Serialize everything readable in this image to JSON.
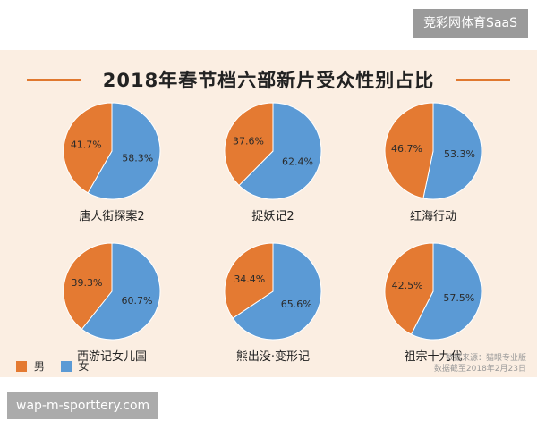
{
  "brand_badge": "竞彩网体育SaaS",
  "url_badge": "wap-m-sporttery.com",
  "colors": {
    "male": "#e47a32",
    "female": "#5b9ad5",
    "panel": "#fbeee2",
    "accent": "#e0782f"
  },
  "chart_data": {
    "type": "pie",
    "title": "2018年春节档六部新片受众性别占比",
    "legend_position": "bottom-left",
    "legend": [
      {
        "label": "男",
        "color": "#e47a32"
      },
      {
        "label": "女",
        "color": "#5b9ad5"
      }
    ],
    "charts": [
      {
        "name": "唐人街探案2",
        "male": 41.7,
        "female": 58.3,
        "male_label": "41.7%",
        "female_label": "58.3%"
      },
      {
        "name": "捉妖记2",
        "male": 37.6,
        "female": 62.4,
        "male_label": "37.6%",
        "female_label": "62.4%"
      },
      {
        "name": "红海行动",
        "male": 46.7,
        "female": 53.3,
        "male_label": "46.7%",
        "female_label": "53.3%"
      },
      {
        "name": "西游记女儿国",
        "male": 39.3,
        "female": 60.7,
        "male_label": "39.3%",
        "female_label": "60.7%"
      },
      {
        "name": "熊出没·变形记",
        "male": 34.4,
        "female": 65.6,
        "male_label": "34.4%",
        "female_label": "65.6%"
      },
      {
        "name": "祖宗十九代",
        "male": 42.5,
        "female": 57.5,
        "male_label": "42.5%",
        "female_label": "57.5%"
      }
    ],
    "source": {
      "line1": "数据来源：猫眼专业版",
      "line2": "数据截至2018年2月23日"
    }
  }
}
